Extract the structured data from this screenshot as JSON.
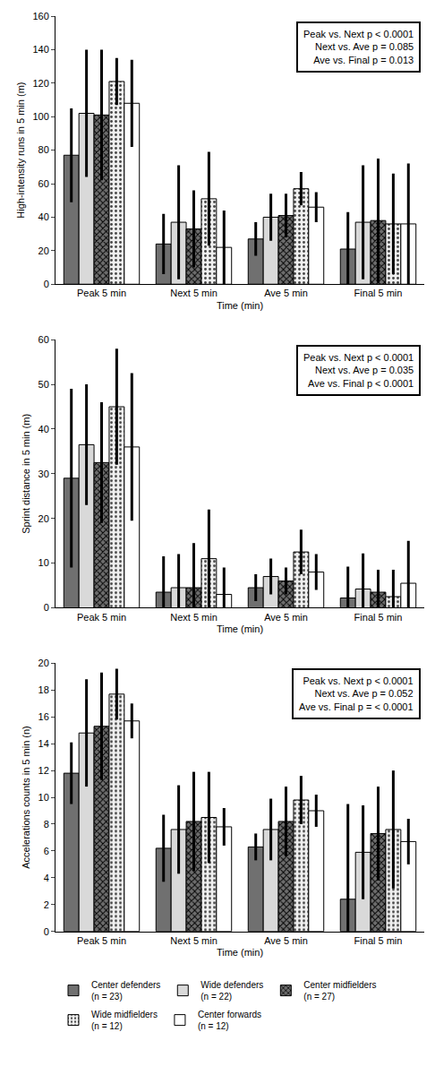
{
  "chart_data": [
    {
      "type": "bar",
      "y_label": "High-intensity runs in 5 min (m)",
      "x_label": "Time (min)",
      "categories": [
        "Peak 5 min",
        "Next 5 min",
        "Ave 5 min",
        "Final 5 min"
      ],
      "ylim": [
        0,
        160
      ],
      "yticks": [
        0,
        20,
        40,
        60,
        80,
        100,
        120,
        140,
        160
      ],
      "grid": false,
      "legend": "bottom",
      "annotation": [
        "Peak vs. Next p < 0.0001",
        "Next vs. Ave p = 0.085",
        "Ave vs. Final p = 0.013"
      ],
      "series": [
        {
          "name": "Center defenders (n = 23)",
          "color": "#707070",
          "marker": "solid",
          "values": [
            77,
            24,
            27,
            21
          ],
          "errors": [
            28,
            18,
            10,
            22
          ]
        },
        {
          "name": "Wide defenders (n = 22)",
          "color": "#d9d9d9",
          "marker": "solid",
          "values": [
            102,
            37,
            40,
            37
          ],
          "errors": [
            38,
            34,
            14,
            34
          ]
        },
        {
          "name": "Center midfielders (n = 27)",
          "color": "#6e6e6e",
          "marker": "checkered",
          "values": [
            101,
            33,
            41,
            38
          ],
          "errors": [
            39,
            23,
            13,
            37
          ]
        },
        {
          "name": "Wide midfielders (n = 12)",
          "color": "#efefef",
          "marker": "dotted",
          "values": [
            121,
            51,
            57,
            36
          ],
          "errors": [
            14,
            28,
            10,
            30
          ]
        },
        {
          "name": "Center forwards (n = 12)",
          "color": "#ffffff",
          "marker": "solid",
          "values": [
            108,
            22,
            46,
            36
          ],
          "errors": [
            26,
            22,
            9,
            36
          ]
        }
      ]
    },
    {
      "type": "bar",
      "y_label": "Sprint distance in 5 min (m)",
      "x_label": "Time (min)",
      "categories": [
        "Peak 5 min",
        "Next 5 min",
        "Ave 5 min",
        "Final 5 min"
      ],
      "ylim": [
        0,
        60
      ],
      "yticks": [
        0,
        10,
        20,
        30,
        40,
        50,
        60
      ],
      "grid": false,
      "legend": "bottom",
      "annotation": [
        "Peak vs. Next p < 0.0001",
        "Next vs. Ave p = 0.035",
        "Ave vs. Final p < 0.0001"
      ],
      "series": [
        {
          "name": "Center defenders (n = 23)",
          "color": "#707070",
          "marker": "solid",
          "values": [
            29,
            3.5,
            4.5,
            2.2
          ],
          "errors": [
            20,
            8,
            3,
            7
          ]
        },
        {
          "name": "Wide defenders (n = 22)",
          "color": "#d9d9d9",
          "marker": "solid",
          "values": [
            36.5,
            4.5,
            7,
            4.2
          ],
          "errors": [
            13.5,
            7.5,
            4,
            8
          ]
        },
        {
          "name": "Center midfielders (n = 27)",
          "color": "#6e6e6e",
          "marker": "checkered",
          "values": [
            32.5,
            4.5,
            6,
            3.5
          ],
          "errors": [
            13.5,
            10,
            3,
            5
          ]
        },
        {
          "name": "Wide midfielders (n = 12)",
          "color": "#efefef",
          "marker": "dotted",
          "values": [
            45,
            11,
            12.5,
            2.5
          ],
          "errors": [
            13,
            11,
            5,
            6
          ]
        },
        {
          "name": "Center forwards (n = 12)",
          "color": "#ffffff",
          "marker": "solid",
          "values": [
            36,
            3,
            8,
            5.5
          ],
          "errors": [
            16.5,
            6,
            4,
            9.5
          ]
        }
      ]
    },
    {
      "type": "bar",
      "y_label": "Accelerations counts in 5 min (n)",
      "x_label": "Time (min)",
      "categories": [
        "Peak 5 min",
        "Next 5 min",
        "Ave 5 min",
        "Final 5 min"
      ],
      "ylim": [
        0,
        20
      ],
      "yticks": [
        0,
        2,
        4,
        6,
        8,
        10,
        12,
        14,
        16,
        18,
        20
      ],
      "grid": false,
      "legend": "bottom",
      "annotation": [
        "Peak vs. Next p < 0.0001",
        "Next vs. Ave p = 0.052",
        "Ave vs. Final p = < 0.0001"
      ],
      "series": [
        {
          "name": "Center defenders (n = 23)",
          "color": "#707070",
          "marker": "solid",
          "values": [
            11.8,
            6.2,
            6.3,
            2.4
          ],
          "errors": [
            2.3,
            2.5,
            1,
            7.1
          ]
        },
        {
          "name": "Wide defenders (n = 22)",
          "color": "#d9d9d9",
          "marker": "solid",
          "values": [
            14.8,
            7.6,
            7.6,
            5.9
          ],
          "errors": [
            4,
            3.3,
            2.3,
            3.5
          ]
        },
        {
          "name": "Center midfielders (n = 27)",
          "color": "#6e6e6e",
          "marker": "checkered",
          "values": [
            15.3,
            8.2,
            8.2,
            7.3
          ],
          "errors": [
            4,
            3.7,
            2.6,
            3.5
          ]
        },
        {
          "name": "Wide midfielders (n = 12)",
          "color": "#efefef",
          "marker": "dotted",
          "values": [
            17.7,
            8.5,
            9.8,
            7.6
          ],
          "errors": [
            1.9,
            3.4,
            1.8,
            4.4
          ]
        },
        {
          "name": "Center forwards (n = 12)",
          "color": "#ffffff",
          "marker": "solid",
          "values": [
            15.7,
            7.8,
            9,
            6.7
          ],
          "errors": [
            1.3,
            1.4,
            1.2,
            1.7
          ]
        }
      ]
    }
  ]
}
